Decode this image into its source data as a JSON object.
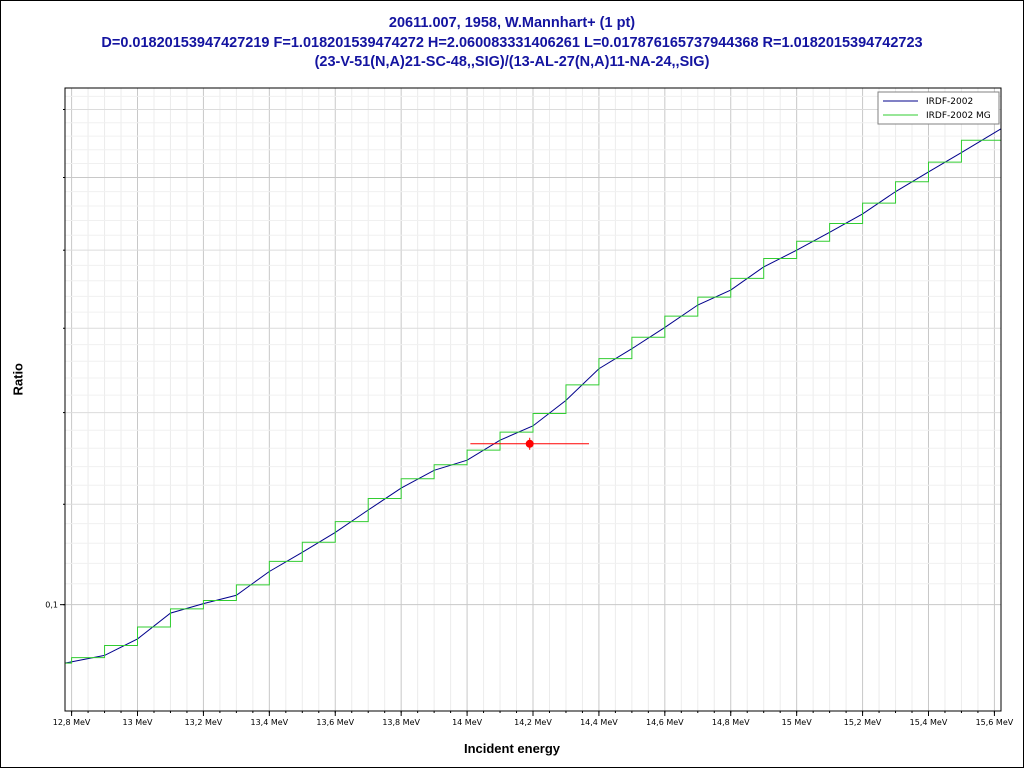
{
  "chart_data": {
    "type": "line",
    "title_lines": [
      "20611.007, 1958, W.Mannhart+ (1 pt)",
      "D=0.01820153947427219 F=1.018201539474272 H=2.060083331406261 L=0.017876165737944368 R=1.0182015394742723",
      "(23-V-51(N,A)21-SC-48,,SIG)/(13-AL-27(N,A)11-NA-24,,SIG)"
    ],
    "xlabel": "Incident energy",
    "ylabel": "Ratio",
    "x_unit": "MeV",
    "xlim": [
      12.78,
      15.62
    ],
    "ylim": [
      0.0904,
      0.1633
    ],
    "yscale": "log",
    "grid": true,
    "legend_position": "top-right",
    "x_ticks": [
      "12,8 MeV",
      "13 MeV",
      "13,2 MeV",
      "13,4 MeV",
      "13,6 MeV",
      "13,8 MeV",
      "14 MeV",
      "14,2 MeV",
      "14,4 MeV",
      "14,6 MeV",
      "14,8 MeV",
      "15 MeV",
      "15,2 MeV",
      "15,4 MeV",
      "15,6 MeV"
    ],
    "x_tick_values": [
      12.8,
      13.0,
      13.2,
      13.4,
      13.6,
      13.8,
      14.0,
      14.2,
      14.4,
      14.6,
      14.8,
      15.0,
      15.2,
      15.4,
      15.6
    ],
    "y_ticks": [
      "0,1"
    ],
    "y_tick_values": [
      0.1
    ],
    "series": [
      {
        "name": "IRDF-2002",
        "color": "#00008b",
        "x": [
          12.78,
          12.9,
          13.0,
          13.1,
          13.2,
          13.3,
          13.4,
          13.5,
          13.6,
          13.7,
          13.8,
          13.9,
          14.0,
          14.1,
          14.2,
          14.3,
          14.4,
          14.5,
          14.6,
          14.7,
          14.8,
          14.9,
          15.0,
          15.1,
          15.2,
          15.3,
          15.4,
          15.5,
          15.62
        ],
        "y": [
          0.0946,
          0.0953,
          0.0968,
          0.0992,
          0.1001,
          0.1009,
          0.1032,
          0.1051,
          0.1071,
          0.1094,
          0.1117,
          0.1136,
          0.1147,
          0.1169,
          0.1185,
          0.1214,
          0.1251,
          0.1275,
          0.1301,
          0.1329,
          0.1348,
          0.1378,
          0.14,
          0.1424,
          0.1449,
          0.148,
          0.1508,
          0.1536,
          0.1571
        ]
      },
      {
        "name": "IRDF-2002 MG",
        "color": "#32cd32",
        "type": "step",
        "edges": [
          12.78,
          12.8,
          12.9,
          13.0,
          13.1,
          13.2,
          13.3,
          13.4,
          13.5,
          13.6,
          13.7,
          13.8,
          13.9,
          14.0,
          14.1,
          14.2,
          14.3,
          14.4,
          14.5,
          14.6,
          14.7,
          14.8,
          14.9,
          15.0,
          15.1,
          15.2,
          15.3,
          15.4,
          15.5,
          15.62
        ],
        "values": [
          0.0946,
          0.0951,
          0.0962,
          0.0979,
          0.0996,
          0.1004,
          0.1019,
          0.1042,
          0.1061,
          0.1082,
          0.1106,
          0.1127,
          0.1142,
          0.1158,
          0.1178,
          0.1199,
          0.1232,
          0.1263,
          0.1289,
          0.1315,
          0.1339,
          0.1363,
          0.1389,
          0.1412,
          0.1436,
          0.1464,
          0.1494,
          0.1522,
          0.1554
        ]
      }
    ],
    "experimental_points": [
      {
        "x": 14.19,
        "y": 0.1165,
        "x_err_low": 14.01,
        "x_err_high": 14.37,
        "color": "#ff0000"
      }
    ]
  }
}
